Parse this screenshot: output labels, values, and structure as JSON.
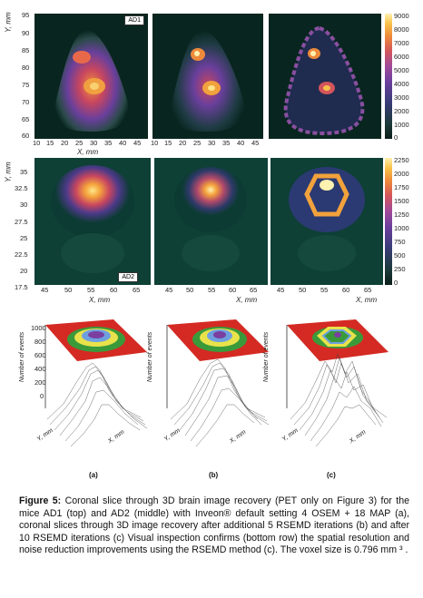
{
  "figure": {
    "top_row": {
      "ylabel": "Y, mm",
      "xlabel": "X, mm",
      "yticks": [
        "95",
        "90",
        "85",
        "80",
        "75",
        "70",
        "65",
        "60"
      ],
      "xticks": [
        "10",
        "15",
        "20",
        "25",
        "30",
        "35",
        "40",
        "45"
      ],
      "tag": "AD1",
      "colorbar_ticks": [
        "9000",
        "8000",
        "7000",
        "6000",
        "5000",
        "4000",
        "3000",
        "2000",
        "1000",
        "0"
      ]
    },
    "middle_row": {
      "ylabel": "Y, mm",
      "xlabel": "X, mm",
      "yticks": [
        "35",
        "32.5",
        "30",
        "27.5",
        "25",
        "22.5",
        "20",
        "17.5"
      ],
      "xticks": [
        "45",
        "50",
        "55",
        "60",
        "65"
      ],
      "tag": "AD2",
      "colorbar_ticks": [
        "2250",
        "2000",
        "1750",
        "1500",
        "1250",
        "1000",
        "750",
        "500",
        "250",
        "0"
      ]
    },
    "bottom_row": {
      "zlabel": "Number of events",
      "zticks": [
        "1000",
        "800",
        "600",
        "400",
        "200",
        "0"
      ],
      "ylabel": "Y, mm",
      "xlabel": "X, mm",
      "yticks": [
        "30",
        "27.5",
        "25",
        "22.5",
        "20",
        "17.5"
      ],
      "xticks": [
        "45",
        "50",
        "55",
        "60",
        "65"
      ]
    },
    "panel_letters": [
      "(a)",
      "(b)",
      "(c)"
    ]
  },
  "caption": {
    "label": "Figure 5:",
    "text": "Coronal slice through 3D brain image recovery (PET only on Figure 3) for the mice AD1 (top) and AD2 (middle) with Inveon® default setting 4 OSEM + 18 MAP (a), coronal slices through 3D image recovery after additional 5 RSEMD iterations (b) and after 10 RSEMD iterations (c) Visual inspection confirms (bottom row) the spatial resolution and noise reduction improvements using the RSEMD method (c). The voxel size is 0.796 mm ³ ."
  },
  "colors": {
    "background": "#08261f",
    "colormap": [
      "#0b1e1a",
      "#1c3a3a",
      "#3b3d7a",
      "#6a3f9c",
      "#a04a9a",
      "#d2555b",
      "#ee8a3b",
      "#f8c24a",
      "#fff1b0"
    ]
  }
}
